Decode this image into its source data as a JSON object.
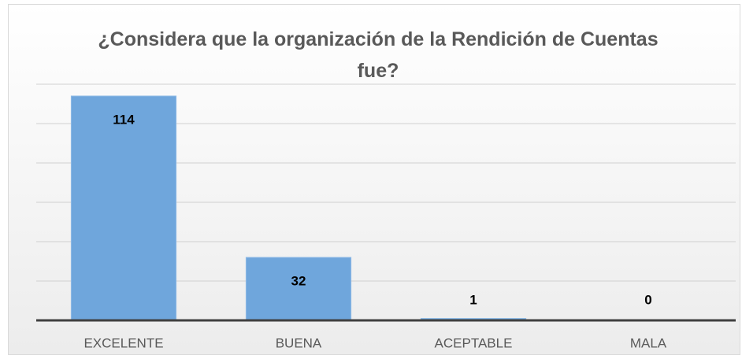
{
  "chart_data": {
    "type": "bar",
    "title": "¿Considera que la organización de la Rendición de Cuentas fue?",
    "categories": [
      "EXCELENTE",
      "BUENA",
      "ACEPTABLE",
      "MALA"
    ],
    "values": [
      114,
      32,
      1,
      0
    ],
    "color": "#6fa6dc",
    "ylim": [
      0,
      120
    ],
    "yticks": [
      0,
      20,
      40,
      60,
      80,
      100,
      120
    ],
    "grid": true
  }
}
